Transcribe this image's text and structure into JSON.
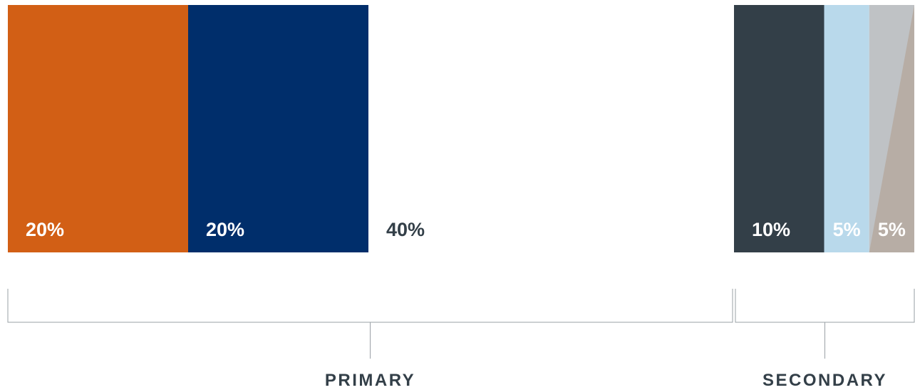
{
  "chart_data": {
    "type": "bar",
    "orientation": "horizontal-stacked",
    "categories": [
      "",
      "",
      "",
      "",
      "",
      ""
    ],
    "values": [
      20,
      20,
      40,
      10,
      5,
      5
    ],
    "labels": [
      "20%",
      "20%",
      "40%",
      "10%",
      "5%",
      "5%"
    ],
    "colors": [
      "#d25f15",
      "#002e6b",
      "#ffffff",
      "#333f48",
      "#b9d9eb",
      "#bfc2c5"
    ],
    "label_colors": [
      "#ffffff",
      "#ffffff",
      "#333f48",
      "#ffffff",
      "#ffffff",
      "#ffffff"
    ],
    "accent_color": "#b7ada5",
    "groups": [
      {
        "label": "PRIMARY",
        "start": 0,
        "end": 3
      },
      {
        "label": "SECONDARY",
        "start": 3,
        "end": 6
      }
    ],
    "xlim": [
      0,
      100
    ],
    "grid": false,
    "legend": "none"
  }
}
